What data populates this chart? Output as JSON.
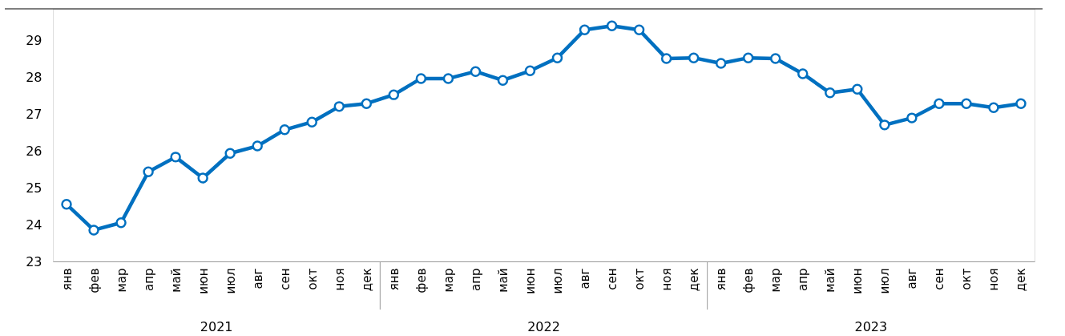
{
  "chart_data": {
    "type": "line",
    "categories": [
      "янв",
      "фев",
      "мар",
      "апр",
      "май",
      "июн",
      "июл",
      "авг",
      "сен",
      "окт",
      "ноя",
      "дек",
      "янв",
      "фев",
      "мар",
      "апр",
      "май",
      "июн",
      "июл",
      "авг",
      "сен",
      "окт",
      "ноя",
      "дек",
      "янв",
      "фев",
      "мар",
      "апр",
      "май",
      "июн",
      "июл",
      "авг",
      "сен",
      "окт",
      "ноя",
      "дек"
    ],
    "series": [
      {
        "color": "#0070c0",
        "values": [
          24.55,
          23.85,
          24.05,
          25.43,
          25.83,
          25.26,
          25.93,
          26.13,
          26.57,
          26.78,
          27.2,
          27.28,
          27.52,
          27.96,
          27.96,
          28.15,
          27.91,
          28.17,
          28.52,
          29.28,
          29.39,
          29.28,
          28.5,
          28.52,
          28.37,
          28.52,
          28.5,
          28.09,
          27.57,
          27.67,
          26.7,
          26.89,
          27.28,
          27.28,
          27.17,
          27.28
        ]
      }
    ],
    "annotations": [
      "2021",
      "2022",
      "2023"
    ],
    "ylim": [
      23,
      29.85
    ],
    "yticks": [
      23,
      24,
      25,
      26,
      27,
      28,
      29
    ],
    "grid": false,
    "marker": "circle",
    "line_style": "solid"
  }
}
